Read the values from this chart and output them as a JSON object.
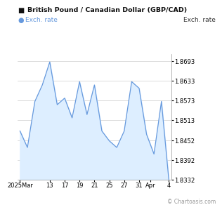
{
  "title": "British Pound / Canadian Dollar (GBP/CAD)",
  "legend_label": "Exch. rate",
  "ylabel_right": "Exch. rate",
  "line_color": "#6699dd",
  "fill_color": "#ddeeff",
  "background_color": "#ffffff",
  "x_labels": [
    "2025Mar",
    "13",
    "17",
    "19",
    "21",
    "25",
    "27",
    "31",
    "Apr",
    "4"
  ],
  "ylim_min": 1.8332,
  "ylim_max": 1.8713,
  "yticks": [
    1.8332,
    1.8392,
    1.8452,
    1.8513,
    1.8573,
    1.8633,
    1.8693
  ],
  "watermark": "© Chartoasis.com",
  "x_values": [
    0,
    1,
    2,
    3,
    4,
    5,
    6,
    7,
    8,
    9,
    10,
    11,
    12,
    13,
    14,
    15,
    16,
    17,
    18,
    19,
    20
  ],
  "y_values": [
    1.848,
    1.843,
    1.857,
    1.862,
    1.869,
    1.856,
    1.858,
    1.852,
    1.863,
    1.853,
    1.862,
    1.848,
    1.845,
    1.843,
    1.848,
    1.863,
    1.861,
    1.847,
    1.841,
    1.857,
    1.833
  ],
  "x_tick_positions": [
    0,
    4,
    6,
    8,
    10,
    12,
    14,
    16,
    17.5,
    20
  ]
}
